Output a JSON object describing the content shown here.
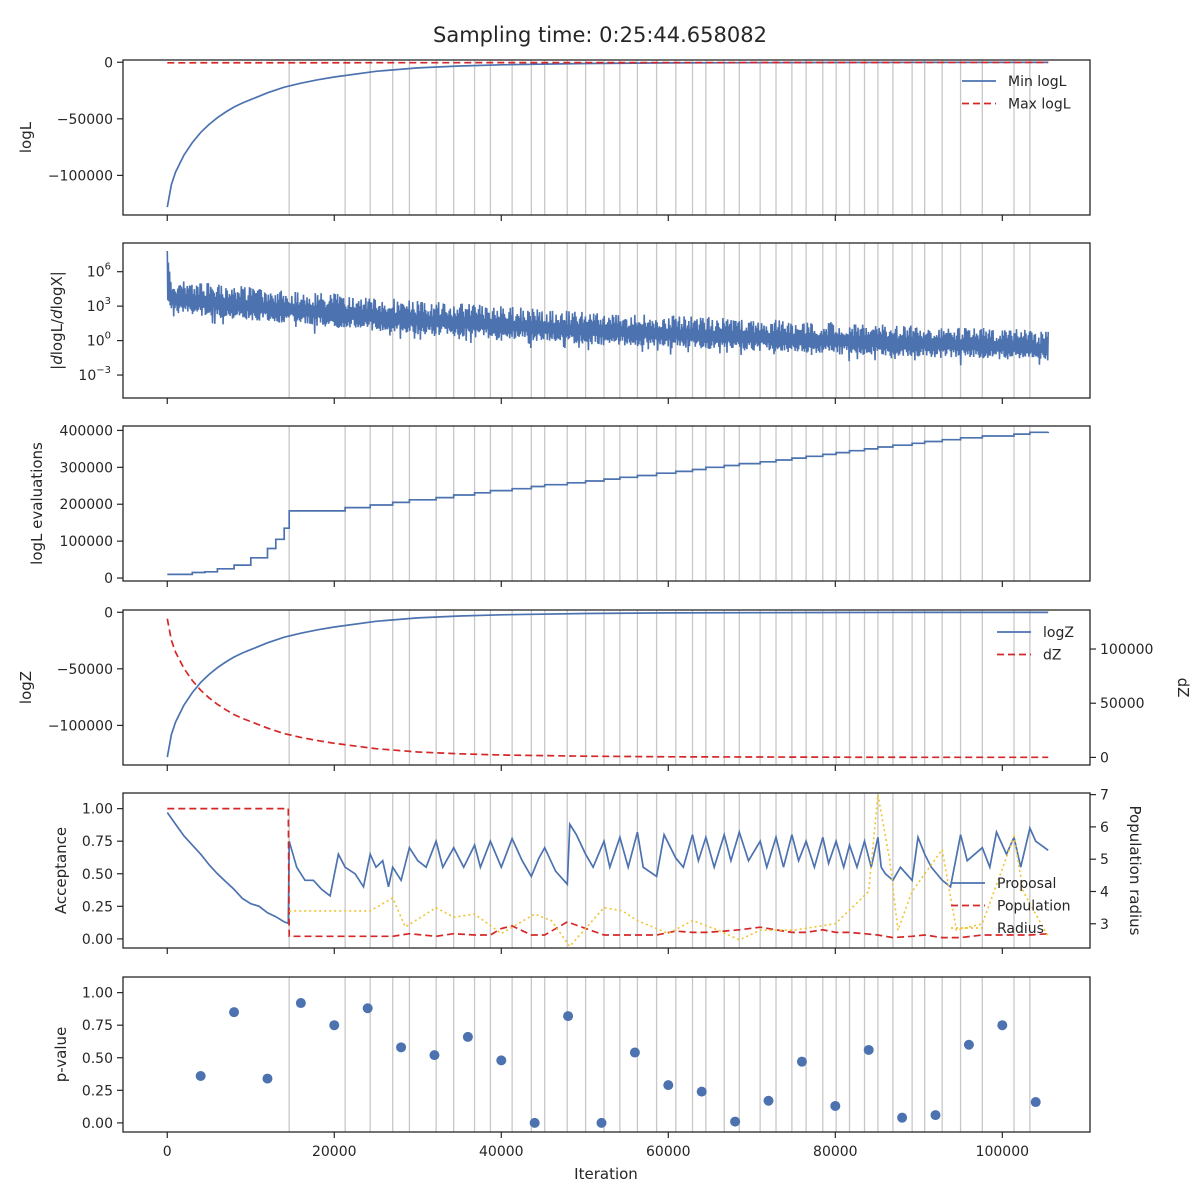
{
  "title": "Sampling time: 0:25:44.658082",
  "xlabel": "Iteration",
  "colors": {
    "blue": "#4c72b0",
    "red": "#d62728",
    "gold": "#f0c330",
    "grid": "#c8c8c8"
  },
  "x_axis": {
    "ticks": [
      0,
      20000,
      40000,
      60000,
      80000,
      100000
    ],
    "labels": [
      "0",
      "20000",
      "40000",
      "60000",
      "80000",
      "100000"
    ],
    "lim": [
      -5300,
      110500
    ]
  },
  "insertion_lines": [
    14600,
    21300,
    24300,
    27000,
    29000,
    32200,
    34300,
    36800,
    38700,
    41300,
    43600,
    45200,
    47900,
    50100,
    52300,
    54200,
    56300,
    58600,
    60900,
    62900,
    64500,
    66700,
    68500,
    71000,
    72900,
    74800,
    76500,
    78500,
    80100,
    81700,
    83500,
    85100,
    86900,
    89200,
    90700,
    92800,
    95000,
    97600,
    101400,
    103300
  ],
  "chart_data": [
    {
      "type": "line",
      "panel": "logL",
      "ylabel": "logL",
      "yticks": [
        0,
        -50000,
        -100000
      ],
      "yticklabels": [
        "0",
        "−50000",
        "−100000"
      ],
      "ylim": [
        -135000,
        2000
      ],
      "series": [
        {
          "name": "Min logL",
          "style": "solid",
          "color": "blue",
          "x": [
            0,
            500,
            1000,
            2000,
            3000,
            4000,
            5000,
            6000,
            7000,
            8000,
            9000,
            10000,
            12000,
            14000,
            16000,
            18000,
            20000,
            25000,
            30000,
            35000,
            40000,
            50000,
            60000,
            70000,
            80000,
            90000,
            100000,
            105500
          ],
          "y": [
            -128000,
            -108000,
            -97000,
            -82000,
            -71000,
            -62000,
            -55000,
            -49000,
            -44000,
            -39500,
            -36000,
            -33000,
            -27000,
            -22000,
            -18500,
            -15500,
            -13000,
            -8000,
            -5000,
            -3300,
            -2200,
            -1100,
            -600,
            -350,
            -220,
            -150,
            -100,
            -80
          ]
        },
        {
          "name": "Max logL",
          "style": "dashed",
          "color": "red",
          "x": [
            0,
            105500
          ],
          "y": [
            -500,
            -100
          ]
        }
      ],
      "legend": "top-right"
    },
    {
      "type": "line",
      "panel": "gradient",
      "ylabel": "|dlogL/dlogX|",
      "log_scale": true,
      "yticks": [
        6,
        3,
        0,
        -3
      ],
      "yticklabels": [
        "10^6",
        "10^3",
        "10^0",
        "10^-3"
      ],
      "ylim": [
        -5,
        8.5
      ],
      "series": [
        {
          "name": "",
          "style": "band",
          "color": "blue",
          "x": [
            0,
            500,
            1000,
            5000,
            10000,
            20000,
            30000,
            40000,
            50000,
            60000,
            70000,
            80000,
            90000,
            100000,
            105500
          ],
          "upper": [
            7.8,
            5.5,
            5.3,
            5.0,
            4.7,
            4.1,
            3.5,
            3.0,
            2.5,
            2.2,
            1.9,
            1.6,
            1.3,
            1.1,
            0.8
          ],
          "lower": [
            2.5,
            1.8,
            1.6,
            1.4,
            1.0,
            0.4,
            -0.2,
            -0.6,
            -1.0,
            -1.3,
            -1.6,
            -1.9,
            -2.1,
            -2.3,
            -2.5
          ]
        }
      ]
    },
    {
      "type": "line",
      "panel": "evaluations",
      "ylabel": "logL evaluations",
      "yticks": [
        0,
        100000,
        200000,
        300000,
        400000
      ],
      "yticklabels": [
        "0",
        "100000",
        "200000",
        "300000",
        "400000"
      ],
      "ylim": [
        -8000,
        412000
      ],
      "series": [
        {
          "name": "",
          "style": "step",
          "color": "blue",
          "x": [
            0,
            2500,
            3000,
            4500,
            6000,
            8000,
            10000,
            12000,
            13000,
            14000,
            14600,
            21300,
            24300,
            27000,
            29000,
            32200,
            34300,
            36800,
            38700,
            41300,
            43600,
            45200,
            47900,
            50100,
            52300,
            54200,
            56300,
            58600,
            60900,
            62900,
            64500,
            66700,
            68500,
            71000,
            72900,
            74800,
            76500,
            78500,
            80100,
            81700,
            83500,
            85100,
            86900,
            89200,
            90700,
            92800,
            95000,
            97600,
            101400,
            103300,
            105500
          ],
          "y": [
            10000,
            10000,
            15000,
            17000,
            25000,
            35000,
            55000,
            80000,
            105000,
            135000,
            182000,
            191000,
            198000,
            205000,
            212000,
            218000,
            225000,
            231000,
            237000,
            242000,
            248000,
            253000,
            258000,
            263000,
            268000,
            273000,
            278000,
            284000,
            289000,
            294000,
            300000,
            305000,
            310000,
            315000,
            320000,
            325000,
            330000,
            335000,
            340000,
            345000,
            350000,
            355000,
            360000,
            365000,
            370000,
            375000,
            380000,
            385000,
            390000,
            395000,
            396000
          ]
        }
      ]
    },
    {
      "type": "line",
      "panel": "evidence",
      "ylabel": "logZ",
      "ylabel_right": "dZ",
      "yticks": [
        0,
        -50000,
        -100000
      ],
      "yticklabels": [
        "0",
        "−50000",
        "−100000"
      ],
      "ylim": [
        -135000,
        2000
      ],
      "yticks_right": [
        0,
        50000,
        100000
      ],
      "yticklabels_right": [
        "0",
        "50000",
        "100000"
      ],
      "ylim_right": [
        -7000,
        136000
      ],
      "series": [
        {
          "name": "logZ",
          "style": "solid",
          "color": "blue",
          "axis": "left",
          "x": [
            0,
            500,
            1000,
            2000,
            3000,
            4000,
            5000,
            6000,
            7000,
            8000,
            9000,
            10000,
            12000,
            14000,
            16000,
            18000,
            20000,
            25000,
            30000,
            35000,
            40000,
            50000,
            60000,
            70000,
            80000,
            90000,
            100000,
            105500
          ],
          "y": [
            -128000,
            -108000,
            -97000,
            -82000,
            -71000,
            -62000,
            -55000,
            -49000,
            -44000,
            -39500,
            -36000,
            -33000,
            -27000,
            -22000,
            -18500,
            -15500,
            -13000,
            -8000,
            -5000,
            -3300,
            -2200,
            -1100,
            -600,
            -350,
            -220,
            -150,
            -100,
            -80
          ]
        },
        {
          "name": "dZ",
          "style": "dashed",
          "color": "red",
          "axis": "right",
          "x": [
            0,
            500,
            1000,
            2000,
            3000,
            4000,
            5000,
            6000,
            7000,
            8000,
            9000,
            10000,
            12000,
            14000,
            16000,
            18000,
            20000,
            25000,
            30000,
            35000,
            40000,
            50000,
            60000,
            70000,
            80000,
            90000,
            100000,
            105500
          ],
          "y": [
            128000,
            108000,
            97000,
            82000,
            71000,
            62000,
            55000,
            49000,
            44000,
            39500,
            36000,
            33000,
            27000,
            22000,
            18500,
            15500,
            13000,
            8000,
            5000,
            3300,
            2200,
            1100,
            600,
            350,
            220,
            150,
            100,
            80
          ]
        }
      ],
      "legend": "top-right"
    },
    {
      "type": "line",
      "panel": "acceptance",
      "ylabel": "Acceptance",
      "ylabel_right": "Population radius",
      "yticks": [
        0,
        0.25,
        0.5,
        0.75,
        1.0
      ],
      "yticklabels": [
        "0.00",
        "0.25",
        "0.50",
        "0.75",
        "1.00"
      ],
      "ylim": [
        -0.07,
        1.12
      ],
      "yticks_right": [
        3,
        4,
        5,
        6,
        7
      ],
      "yticklabels_right": [
        "3",
        "4",
        "5",
        "6",
        "7"
      ],
      "ylim_right": [
        2.25,
        7.05
      ],
      "series": [
        {
          "name": "Proposal",
          "style": "solid",
          "color": "blue",
          "axis": "left",
          "x": [
            0,
            1000,
            2000,
            3000,
            4000,
            5000,
            6000,
            7000,
            8000,
            9000,
            10000,
            11000,
            12000,
            13000,
            14000,
            14500,
            14600,
            15500,
            16500,
            17500,
            18500,
            19500,
            20500,
            21300,
            22500,
            23500,
            24300,
            25000,
            25800,
            26500,
            27000,
            28000,
            29000,
            30000,
            31000,
            32200,
            33000,
            34300,
            35500,
            36800,
            37500,
            38700,
            40000,
            41300,
            42500,
            43600,
            44500,
            45200,
            46500,
            47900,
            48200,
            49000,
            50100,
            51000,
            52300,
            53000,
            54200,
            55200,
            56300,
            57000,
            58600,
            59500,
            60900,
            61800,
            62900,
            63600,
            64500,
            65500,
            66700,
            67500,
            68500,
            69600,
            71000,
            71800,
            72900,
            73800,
            74800,
            75600,
            76500,
            77500,
            78500,
            79200,
            80100,
            81000,
            81700,
            82600,
            83500,
            84300,
            85100,
            85500,
            86000,
            86900,
            87800,
            89200,
            89900,
            90700,
            91500,
            92800,
            93800,
            95000,
            95800,
            97600,
            98500,
            99300,
            100500,
            101400,
            102200,
            103300,
            104000,
            105500
          ],
          "y": [
            0.97,
            0.88,
            0.79,
            0.72,
            0.65,
            0.57,
            0.5,
            0.44,
            0.38,
            0.31,
            0.27,
            0.25,
            0.2,
            0.17,
            0.13,
            0.12,
            0.75,
            0.55,
            0.45,
            0.45,
            0.38,
            0.33,
            0.65,
            0.55,
            0.5,
            0.4,
            0.65,
            0.55,
            0.6,
            0.4,
            0.55,
            0.45,
            0.7,
            0.6,
            0.55,
            0.75,
            0.55,
            0.7,
            0.55,
            0.72,
            0.55,
            0.75,
            0.55,
            0.77,
            0.6,
            0.48,
            0.62,
            0.7,
            0.52,
            0.42,
            0.88,
            0.8,
            0.65,
            0.55,
            0.75,
            0.55,
            0.78,
            0.55,
            0.82,
            0.55,
            0.48,
            0.8,
            0.62,
            0.55,
            0.8,
            0.6,
            0.78,
            0.55,
            0.8,
            0.6,
            0.82,
            0.6,
            0.75,
            0.55,
            0.78,
            0.55,
            0.8,
            0.6,
            0.75,
            0.55,
            0.78,
            0.58,
            0.75,
            0.55,
            0.72,
            0.55,
            0.75,
            0.55,
            0.78,
            0.55,
            0.5,
            0.45,
            0.55,
            0.45,
            0.78,
            0.65,
            0.55,
            0.45,
            0.4,
            0.8,
            0.6,
            0.7,
            0.55,
            0.82,
            0.65,
            0.78,
            0.55,
            0.85,
            0.75,
            0.68
          ]
        },
        {
          "name": "Population",
          "style": "dashed",
          "color": "red",
          "axis": "left",
          "x": [
            0,
            14500,
            14600,
            27000,
            29000,
            32200,
            34300,
            36800,
            38700,
            40000,
            41300,
            43600,
            45200,
            47900,
            50100,
            52300,
            54200,
            56300,
            58600,
            60900,
            62900,
            64500,
            66700,
            68500,
            71000,
            72900,
            74800,
            76500,
            78500,
            80100,
            81700,
            83500,
            85100,
            86900,
            89200,
            90700,
            92800,
            95000,
            97600,
            101400,
            103300,
            105500
          ],
          "y": [
            1.0,
            1.0,
            0.02,
            0.02,
            0.04,
            0.02,
            0.04,
            0.03,
            0.03,
            0.08,
            0.1,
            0.03,
            0.03,
            0.13,
            0.08,
            0.03,
            0.03,
            0.03,
            0.03,
            0.06,
            0.05,
            0.05,
            0.06,
            0.07,
            0.09,
            0.07,
            0.05,
            0.05,
            0.07,
            0.05,
            0.05,
            0.04,
            0.03,
            0.01,
            0.02,
            0.03,
            0.01,
            0.01,
            0.03,
            0.03,
            0.03,
            0.04
          ]
        },
        {
          "name": "Radius",
          "style": "dotted",
          "color": "gold",
          "axis": "right",
          "x": [
            14600,
            18000,
            24300,
            27000,
            28500,
            32200,
            34300,
            36800,
            40000,
            44000,
            46000,
            48200,
            52300,
            54500,
            56300,
            60000,
            62900,
            66000,
            68500,
            71000,
            75000,
            80000,
            84000,
            85100,
            86500,
            87500,
            89200,
            92800,
            94500,
            97600,
            101400,
            102500,
            105500
          ],
          "y": [
            3.4,
            3.4,
            3.4,
            3.8,
            2.9,
            3.5,
            3.2,
            3.3,
            2.7,
            3.3,
            3.1,
            2.3,
            3.5,
            3.4,
            3.1,
            2.7,
            3.1,
            2.8,
            2.5,
            2.8,
            2.8,
            3.0,
            4.0,
            7.0,
            5.0,
            2.8,
            4.0,
            5.3,
            2.8,
            3.0,
            5.7,
            4.0,
            2.6
          ]
        }
      ],
      "legend": "center-right"
    },
    {
      "type": "scatter",
      "panel": "pvalue",
      "ylabel": "p-value",
      "yticks": [
        0,
        0.25,
        0.5,
        0.75,
        1.0
      ],
      "yticklabels": [
        "0.00",
        "0.25",
        "0.50",
        "0.75",
        "1.00"
      ],
      "ylim": [
        -0.07,
        1.12
      ],
      "series": [
        {
          "name": "",
          "color": "blue",
          "x": [
            4000,
            8000,
            12000,
            16000,
            20000,
            24000,
            28000,
            32000,
            36000,
            40000,
            44000,
            48000,
            52000,
            56000,
            60000,
            64000,
            68000,
            72000,
            76000,
            80000,
            84000,
            88000,
            92000,
            96000,
            100000,
            104000
          ],
          "y": [
            0.36,
            0.85,
            0.34,
            0.92,
            0.75,
            0.88,
            0.58,
            0.52,
            0.66,
            0.48,
            0.0,
            0.82,
            0.0,
            0.54,
            0.29,
            0.24,
            0.01,
            0.17,
            0.47,
            0.13,
            0.56,
            0.04,
            0.06,
            0.6,
            0.75,
            0.16
          ]
        }
      ]
    }
  ]
}
